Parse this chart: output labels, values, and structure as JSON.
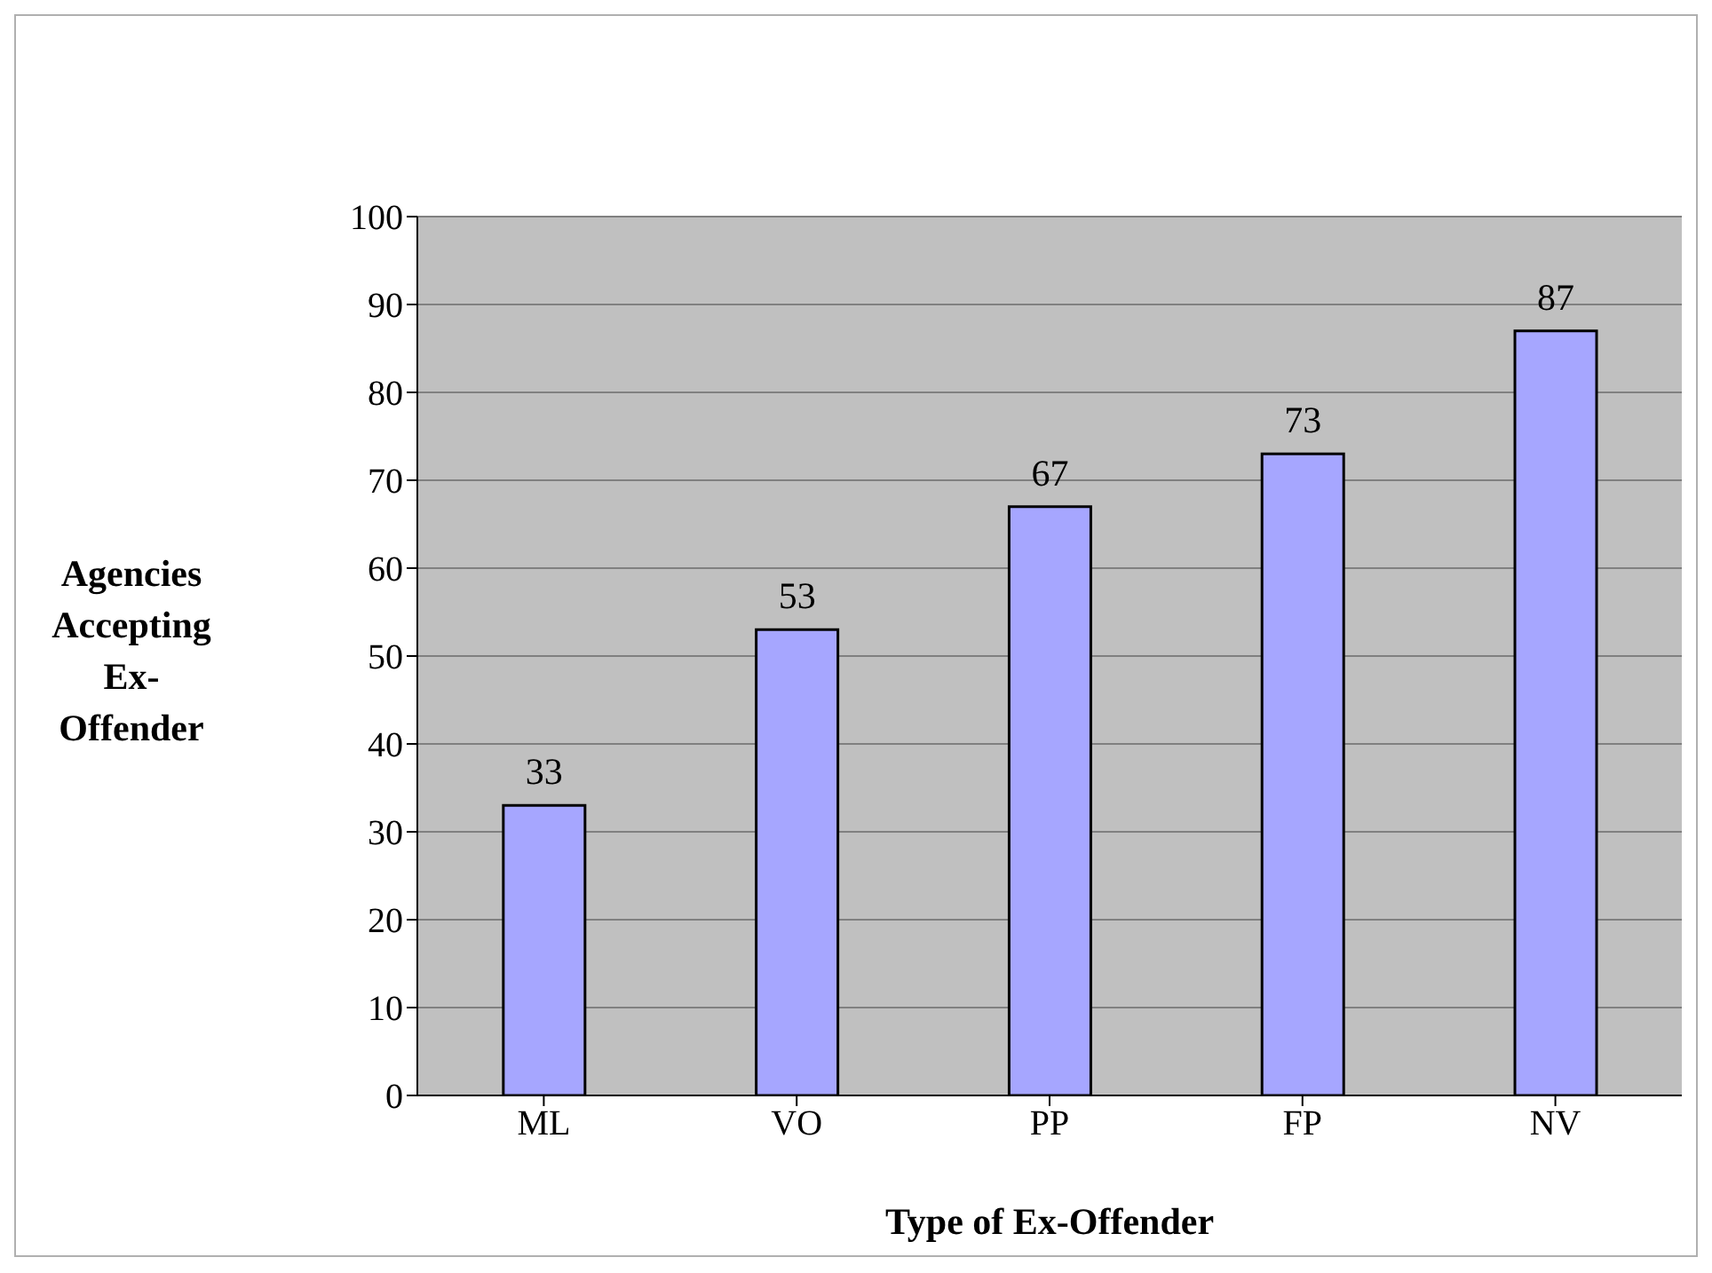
{
  "chart_data": {
    "type": "bar",
    "xlabel": "Type of Ex-Offender",
    "ylabel": "Agencies Accepting Ex-Offender",
    "categories": [
      "ML",
      "VO",
      "PP",
      "FP",
      "NV"
    ],
    "values": [
      33,
      53,
      67,
      73,
      87
    ],
    "color": "#a6a6ff",
    "ylim": [
      0,
      100
    ],
    "yticks": [
      0,
      10,
      20,
      30,
      40,
      50,
      60,
      70,
      80,
      90,
      100
    ],
    "grid": "y",
    "data_labels": true
  }
}
